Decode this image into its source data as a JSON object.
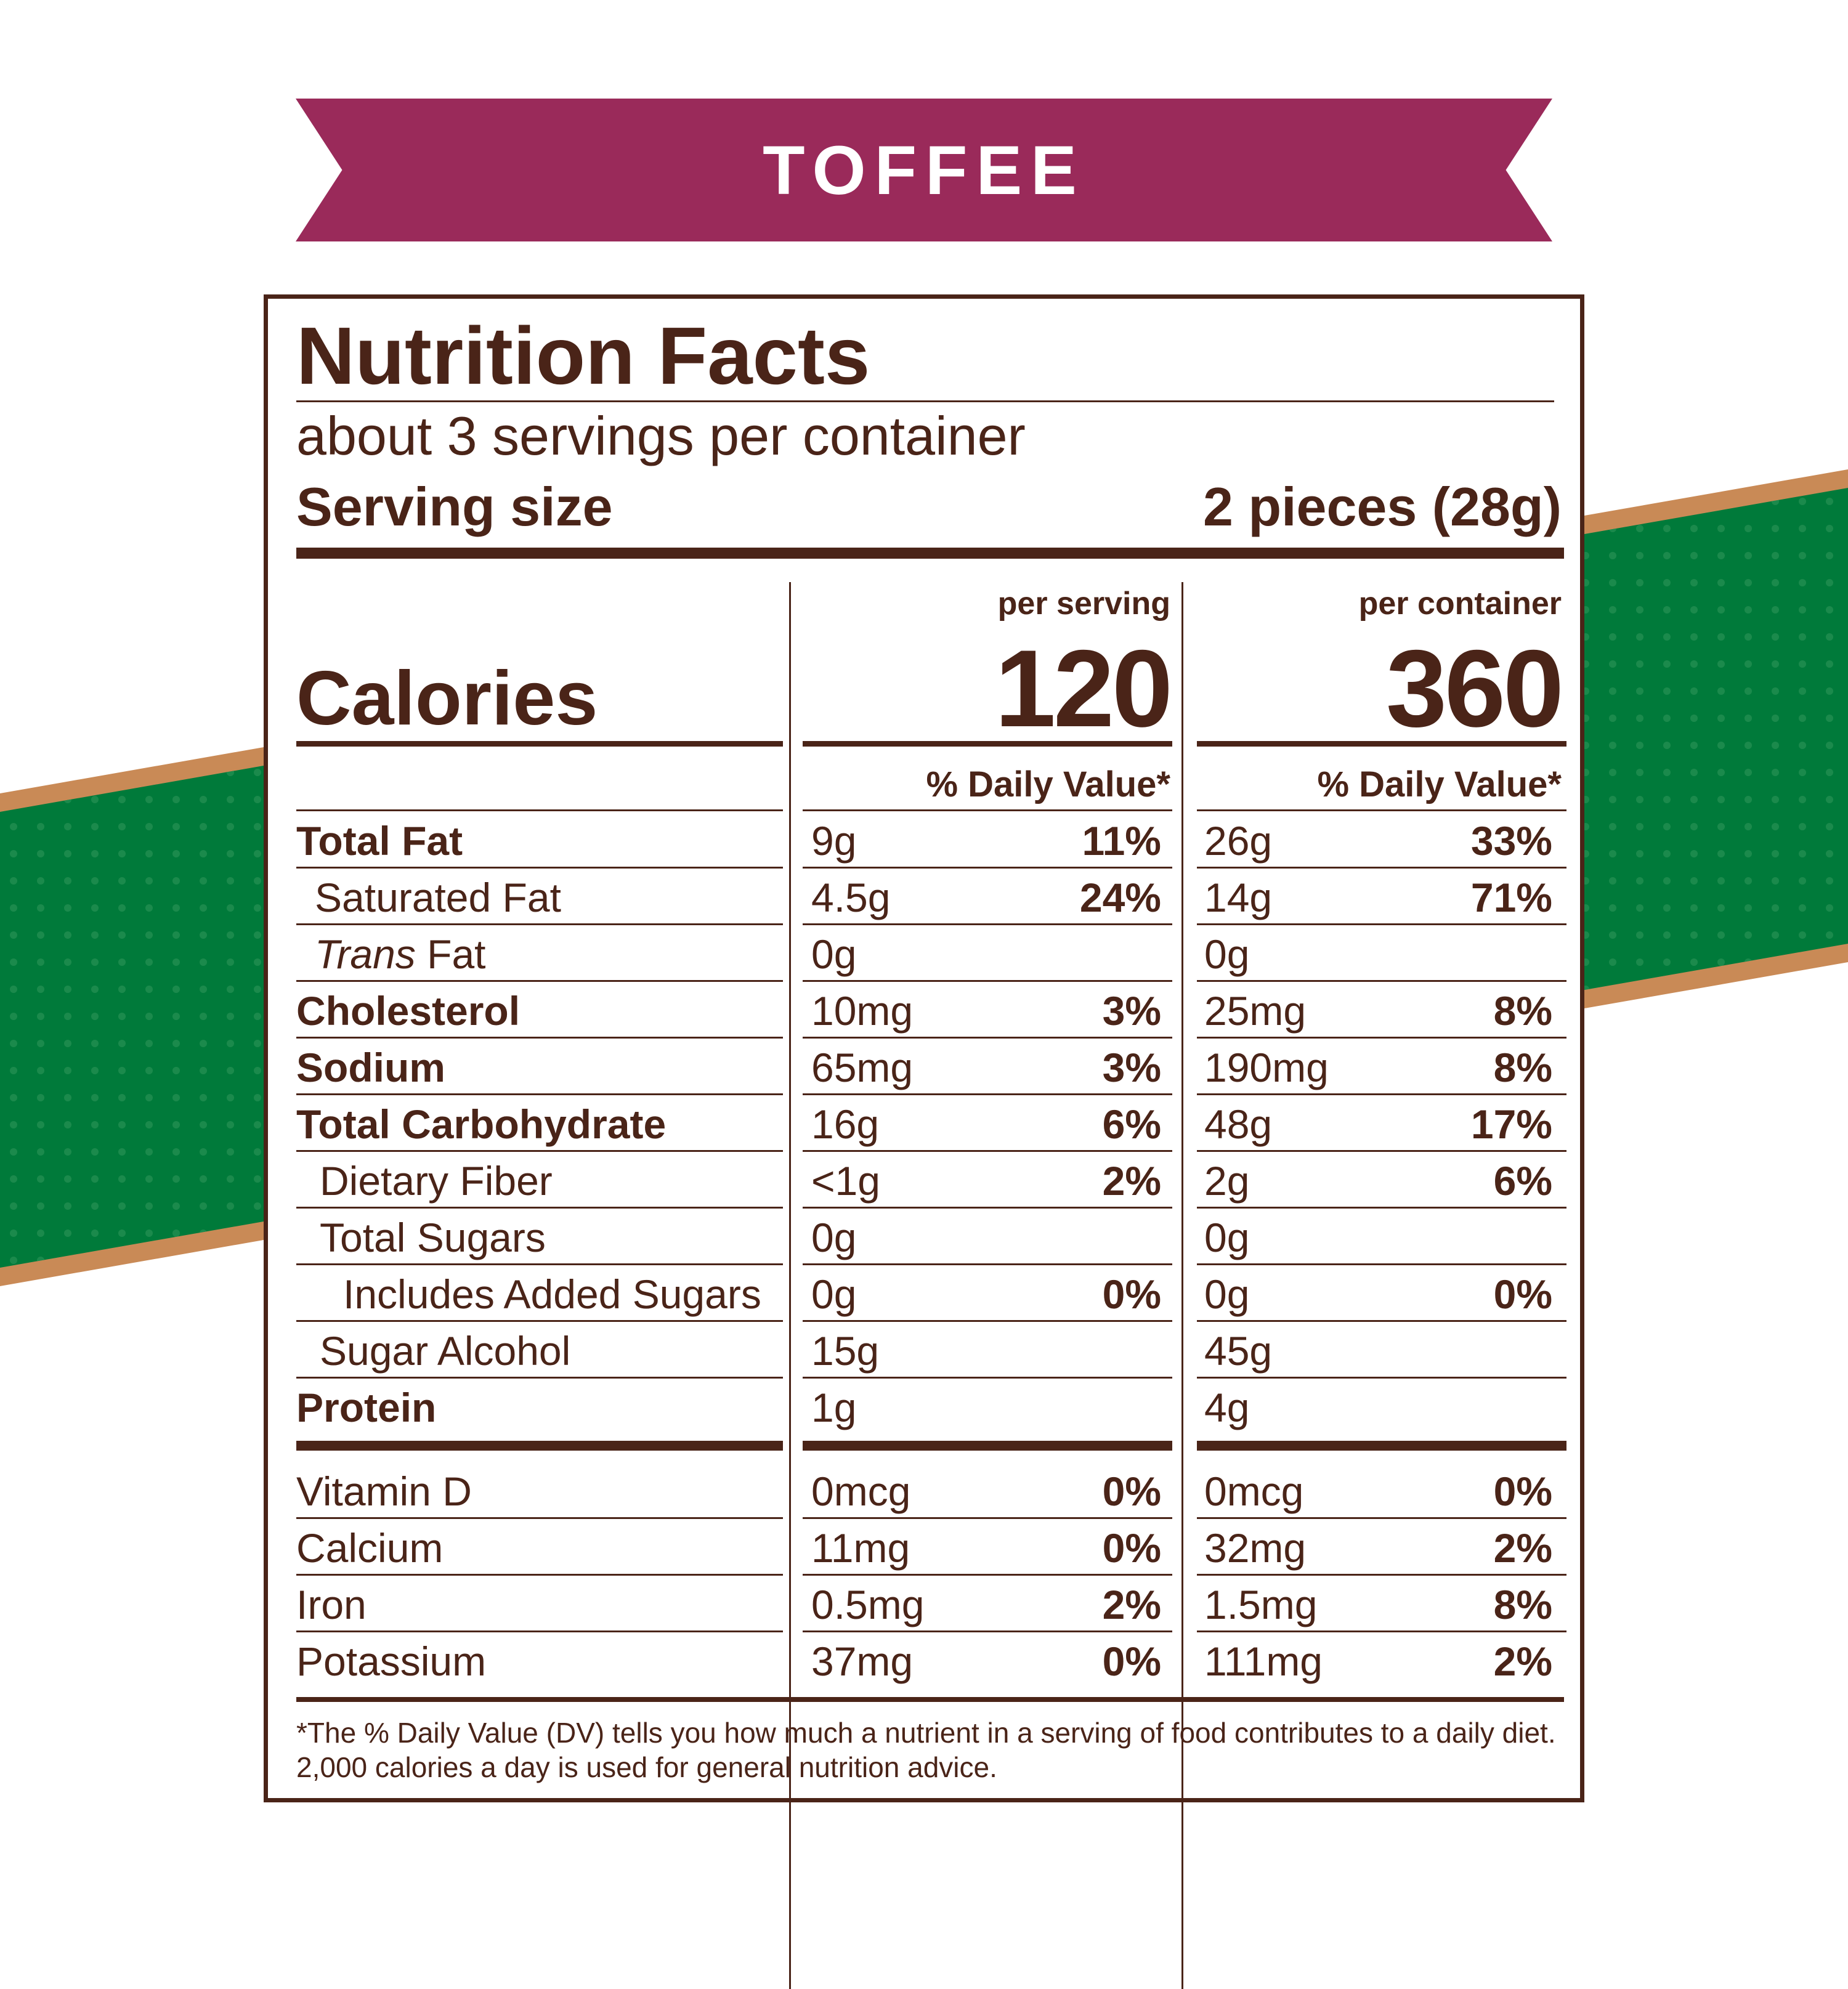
{
  "flavor": "TOFFEE",
  "colors": {
    "ribbon": "#9a2a5a",
    "text": "#4a2418",
    "stripe_green": "#007a3a",
    "stripe_border": "#c98a56"
  },
  "panel": {
    "title": "Nutrition Facts",
    "servings_per_container": "about 3 servings per container",
    "serving_size_label": "Serving size",
    "serving_size_value": "2 pieces (28g)",
    "calories_label": "Calories",
    "per_serving_label": "per serving",
    "per_container_label": "per container",
    "calories_per_serving": "120",
    "calories_per_container": "360",
    "dv_header": "% Daily Value*",
    "nutrients": [
      {
        "name": "Total Fat",
        "s_amt": "9g",
        "s_pct": "11%",
        "c_amt": "26g",
        "c_pct": "33%"
      },
      {
        "name": "Saturated Fat",
        "s_amt": "4.5g",
        "s_pct": "24%",
        "c_amt": "14g",
        "c_pct": "71%"
      },
      {
        "name_italic": "Trans",
        "name_rest": " Fat",
        "s_amt": "0g",
        "s_pct": "",
        "c_amt": "0g",
        "c_pct": ""
      },
      {
        "name": "Cholesterol",
        "s_amt": "10mg",
        "s_pct": "3%",
        "c_amt": "25mg",
        "c_pct": "8%"
      },
      {
        "name": "Sodium",
        "s_amt": "65mg",
        "s_pct": "3%",
        "c_amt": "190mg",
        "c_pct": "8%"
      },
      {
        "name": "Total Carbohydrate",
        "s_amt": "16g",
        "s_pct": "6%",
        "c_amt": "48g",
        "c_pct": "17%"
      },
      {
        "name": "Dietary Fiber",
        "s_amt": "<1g",
        "s_pct": "2%",
        "c_amt": "2g",
        "c_pct": "6%"
      },
      {
        "name": "Total Sugars",
        "s_amt": "0g",
        "s_pct": "",
        "c_amt": "0g",
        "c_pct": ""
      },
      {
        "name": "Includes Added Sugars",
        "s_amt": "0g",
        "s_pct": "0%",
        "c_amt": "0g",
        "c_pct": "0%"
      },
      {
        "name": "Sugar Alcohol",
        "s_amt": "15g",
        "s_pct": "",
        "c_amt": "45g",
        "c_pct": ""
      },
      {
        "name": "Protein",
        "s_amt": "1g",
        "s_pct": "",
        "c_amt": "4g",
        "c_pct": ""
      }
    ],
    "vitamins": [
      {
        "name": "Vitamin D",
        "s_amt": "0mcg",
        "s_pct": "0%",
        "c_amt": "0mcg",
        "c_pct": "0%"
      },
      {
        "name": "Calcium",
        "s_amt": "11mg",
        "s_pct": "0%",
        "c_amt": "32mg",
        "c_pct": "2%"
      },
      {
        "name": "Iron",
        "s_amt": "0.5mg",
        "s_pct": "2%",
        "c_amt": "1.5mg",
        "c_pct": "8%"
      },
      {
        "name": "Potassium",
        "s_amt": "37mg",
        "s_pct": "0%",
        "c_amt": "111mg",
        "c_pct": "2%"
      }
    ],
    "footnote": "*The % Daily Value (DV) tells you how much a nutrient in a serving of food contributes to a daily diet. 2,000 calories a day is used for general nutrition advice."
  }
}
